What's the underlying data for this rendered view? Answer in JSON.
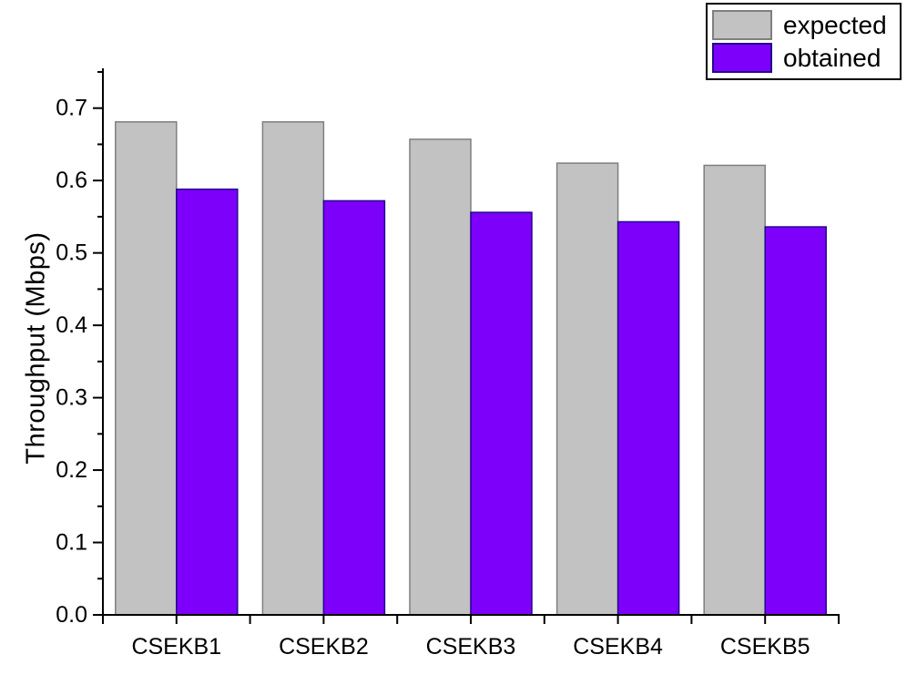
{
  "figure": {
    "background": "#ffffff",
    "axis_color": "#000000",
    "text_color": "#000000"
  },
  "chart_data": {
    "type": "bar",
    "title": "",
    "xlabel": "",
    "ylabel": "Throughput (Mbps)",
    "categories": [
      "CSEKB1",
      "CSEKB2",
      "CSEKB3",
      "CSEKB4",
      "CSEKB5"
    ],
    "series": [
      {
        "name": "expected",
        "color": "#c2c2c2",
        "border": "#7f7f7f",
        "values": [
          0.681,
          0.681,
          0.657,
          0.624,
          0.621
        ]
      },
      {
        "name": "obtained",
        "color": "#7d00fa",
        "border": "#22078f",
        "values": [
          0.588,
          0.572,
          0.556,
          0.543,
          0.536
        ]
      }
    ],
    "ylim": [
      0,
      0.755
    ],
    "ytick_step": 0.1,
    "yminor_step": 0.05,
    "ytick_labels": [
      "0.0",
      "0.1",
      "0.2",
      "0.3",
      "0.4",
      "0.5",
      "0.6",
      "0.7"
    ],
    "grid": false,
    "legend_position": "top-right"
  }
}
